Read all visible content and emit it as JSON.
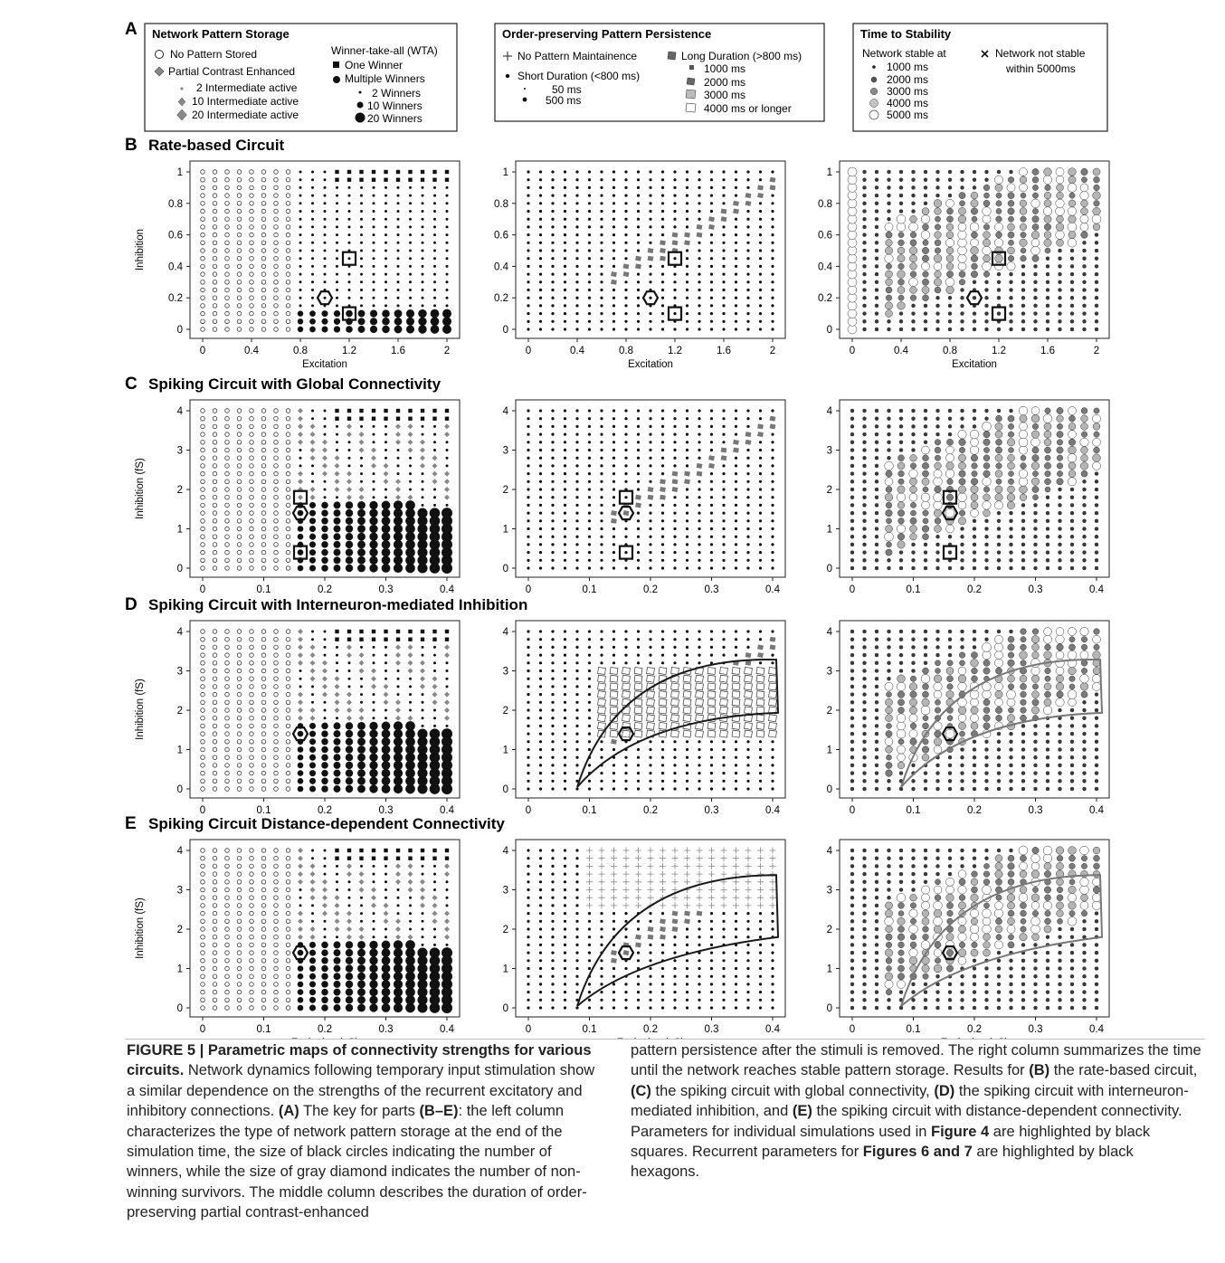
{
  "figure": {
    "legend": {
      "panel_letter": "A",
      "storage": {
        "title": "Network Pattern Storage",
        "no_pattern": "No Pattern Stored",
        "partial": "Partial Contrast Enhanced",
        "p2": "2 Intermediate active",
        "p10": "10 Intermediate active",
        "p20": "20 Intermediate active",
        "wta": "Winner-take-all (WTA)",
        "one": "One Winner",
        "multi": "Multiple Winners",
        "w2": "2 Winners",
        "w10": "10 Winners",
        "w20": "20 Winners"
      },
      "persistence": {
        "title": "Order-preserving Pattern Persistence",
        "no_maint": "No Pattern Maintainence",
        "short": "Short Duration (<800 ms)",
        "s50": "50 ms",
        "s500": "500 ms",
        "long": "Long Duration (>800 ms)",
        "l1000": "1000 ms",
        "l2000": "2000 ms",
        "l3000": "3000 ms",
        "l4000": "4000 ms or longer"
      },
      "stability": {
        "title": "Time to Stability",
        "stable_at": "Network stable at",
        "t1000": "1000 ms",
        "t2000": "2000 ms",
        "t3000": "3000 ms",
        "t4000": "4000 ms",
        "t5000": "5000 ms",
        "not_stable_1": "Network not stable",
        "not_stable_2": "within 5000ms"
      }
    },
    "rows": [
      {
        "letter": "B",
        "title": "Rate-based Circuit",
        "ylabel": "Inhibition",
        "xlabel": "Excitation",
        "xticks": [
          "0",
          "0.4",
          "0.8",
          "1.2",
          "1.6",
          "2"
        ],
        "yticks": [
          "0",
          "0.2",
          "0.4",
          "0.6",
          "0.8",
          "1"
        ]
      },
      {
        "letter": "C",
        "title": "Spiking Circuit with Global Connectivity",
        "ylabel": "Inhibition (fS)",
        "xlabel": "",
        "xticks": [
          "0",
          "0.1",
          "0.2",
          "0.3",
          "0.4"
        ],
        "yticks": [
          "0",
          "1",
          "2",
          "3",
          "4"
        ]
      },
      {
        "letter": "D",
        "title": "Spiking Circuit with Interneuron-mediated Inhibition",
        "ylabel": "Inhibition (fS)",
        "xlabel": "",
        "xticks": [
          "0",
          "0.1",
          "0.2",
          "0.3",
          "0.4"
        ],
        "yticks": [
          "0",
          "1",
          "2",
          "3",
          "4"
        ]
      },
      {
        "letter": "E",
        "title": "Spiking Circuit Distance-dependent Connectivity",
        "ylabel": "Inhibition (fS)",
        "xlabel": "Excitation (pS)",
        "xticks": [
          "0",
          "0.1",
          "0.2",
          "0.3",
          "0.4"
        ],
        "yticks": [
          "0",
          "1",
          "2",
          "3",
          "4"
        ]
      }
    ],
    "colors": {
      "fill_dark": "#3a3a3a",
      "fill_mid": "#7a7a7a",
      "fill_light": "#b5b5b5",
      "fill_pale": "#dcdcdc",
      "curve": "#1a1a1a",
      "curve_gray": "#777777"
    }
  },
  "caption": {
    "bold_lead": "FIGURE 5 | Parametric maps of connectivity strengths for various circuits.",
    "left_1": " Network dynamics following temporary input stimulation show a similar dependence on the strengths of the recurrent excitatory and inhibitory connections. ",
    "left_A": "(A)",
    "left_2": " The key for parts ",
    "left_BE": "(B–E)",
    "left_3": ": the left column characterizes the type of network pattern storage at the end of the simulation time, the size of black circles indicating the number of winners, while the size of gray diamond indicates the number of non-winning survivors. The middle column describes the duration of order-preserving partial contrast-enhanced",
    "right_1": "pattern persistence after the stimuli is removed. The right column summarizes the time until the network reaches stable pattern storage. Results for ",
    "right_B": "(B)",
    "right_2": " the rate-based circuit, ",
    "right_C": "(C)",
    "right_3": " the spiking circuit with global connectivity, ",
    "right_D": "(D)",
    "right_4": " the spiking circuit with interneuron-mediated inhibition, and ",
    "right_E": "(E)",
    "right_5": " the spiking circuit with distance-dependent connectivity. Parameters for individual simulations used in ",
    "right_fig4": "Figure 4",
    "right_6": " are highlighted by black squares. Recurrent parameters for ",
    "right_fig67": "Figures 6 and 7",
    "right_7": " are highlighted by black hexagons."
  }
}
